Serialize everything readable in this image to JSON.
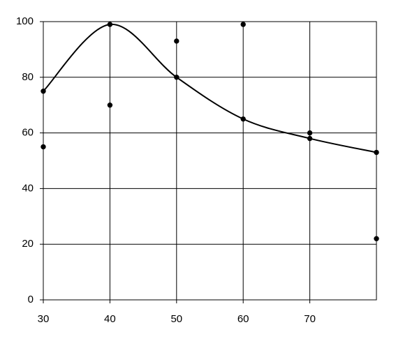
{
  "chart_data": {
    "type": "scatter",
    "series": [
      {
        "color": "#000000",
        "marker": true,
        "x": [
          30,
          30,
          40,
          40,
          50,
          50,
          60,
          60,
          70,
          70,
          80,
          80
        ],
        "values": [
          75,
          55,
          99,
          70,
          93,
          80,
          99,
          65,
          60,
          58,
          53,
          22
        ]
      },
      {
        "color": "#000000",
        "marker": false,
        "smooth": true,
        "x": [
          30,
          40,
          50,
          60,
          70,
          80
        ],
        "values": [
          75,
          99,
          80,
          65,
          58,
          53
        ]
      }
    ],
    "xlim": [
      30,
      80
    ],
    "xticks": [
      30,
      40,
      50,
      60,
      70
    ],
    "ylim": [
      0,
      100
    ],
    "yticks": [
      0,
      20,
      40,
      60,
      80,
      100
    ],
    "grid": true
  }
}
